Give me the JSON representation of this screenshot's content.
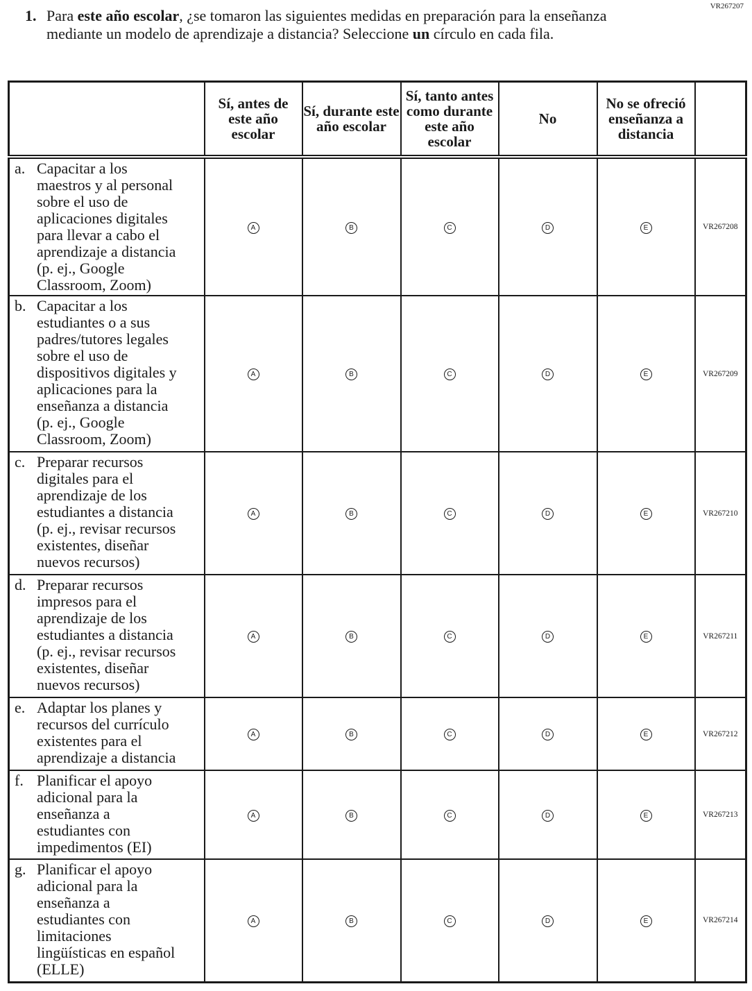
{
  "page_code": "VR267207",
  "question": {
    "number": "1.",
    "parts": [
      {
        "text": "Para ",
        "bold": false
      },
      {
        "text": "este año escolar",
        "bold": true
      },
      {
        "text": ", ¿se tomaron las siguientes medidas en preparación para la enseñanza mediante un modelo de aprendizaje a distancia? Seleccione ",
        "bold": false
      },
      {
        "text": "un",
        "bold": true
      },
      {
        "text": " círculo en cada fila.",
        "bold": false
      }
    ]
  },
  "columns": [
    {
      "label": "Sí, antes de este año escolar",
      "letter": "A"
    },
    {
      "label": "Sí, durante este año escolar",
      "letter": "B"
    },
    {
      "label": "Sí, tanto antes como durante este año escolar",
      "letter": "C"
    },
    {
      "label": "No",
      "letter": "D"
    },
    {
      "label": "No se ofreció enseñanza a distancia",
      "letter": "E"
    }
  ],
  "rows": [
    {
      "letter": "a.",
      "lines": [
        "Capacitar a los",
        "maestros y al personal",
        "sobre el uso de",
        "aplicaciones digitales",
        "para llevar a cabo el",
        "aprendizaje a distancia",
        "(p. ej., Google",
        "Classroom, Zoom)"
      ],
      "code": "VR267208"
    },
    {
      "letter": "b.",
      "lines": [
        "Capacitar a los",
        "estudiantes o a sus",
        "padres/tutores legales",
        "sobre el uso de",
        "dispositivos digitales y",
        "aplicaciones para la",
        "enseñanza a distancia",
        "(p. ej., Google",
        "Classroom, Zoom)"
      ],
      "code": "VR267209"
    },
    {
      "letter": "c.",
      "lines": [
        "Preparar recursos",
        "digitales para el",
        "aprendizaje de los",
        "estudiantes a distancia",
        "(p. ej., revisar recursos",
        "existentes, diseñar",
        "nuevos recursos)"
      ],
      "code": "VR267210"
    },
    {
      "letter": "d.",
      "lines": [
        "Preparar recursos",
        "impresos para el",
        "aprendizaje de los",
        "estudiantes a distancia",
        "(p. ej., revisar recursos",
        "existentes, diseñar",
        "nuevos recursos)"
      ],
      "code": "VR267211"
    },
    {
      "letter": "e.",
      "lines": [
        "Adaptar los planes y",
        "recursos del currículo",
        "existentes para el",
        "aprendizaje a distancia"
      ],
      "code": "VR267212"
    },
    {
      "letter": "f.",
      "lines": [
        "Planificar el apoyo",
        "adicional para la",
        "enseñanza a",
        "estudiantes con",
        "impedimentos (EI)"
      ],
      "code": "VR267213"
    },
    {
      "letter": "g.",
      "lines": [
        "Planificar el apoyo",
        "adicional para la",
        "enseñanza a",
        "estudiantes con",
        "limitaciones",
        "lingüísticas en español",
        "(ELLE)"
      ],
      "code": "VR267214"
    }
  ]
}
